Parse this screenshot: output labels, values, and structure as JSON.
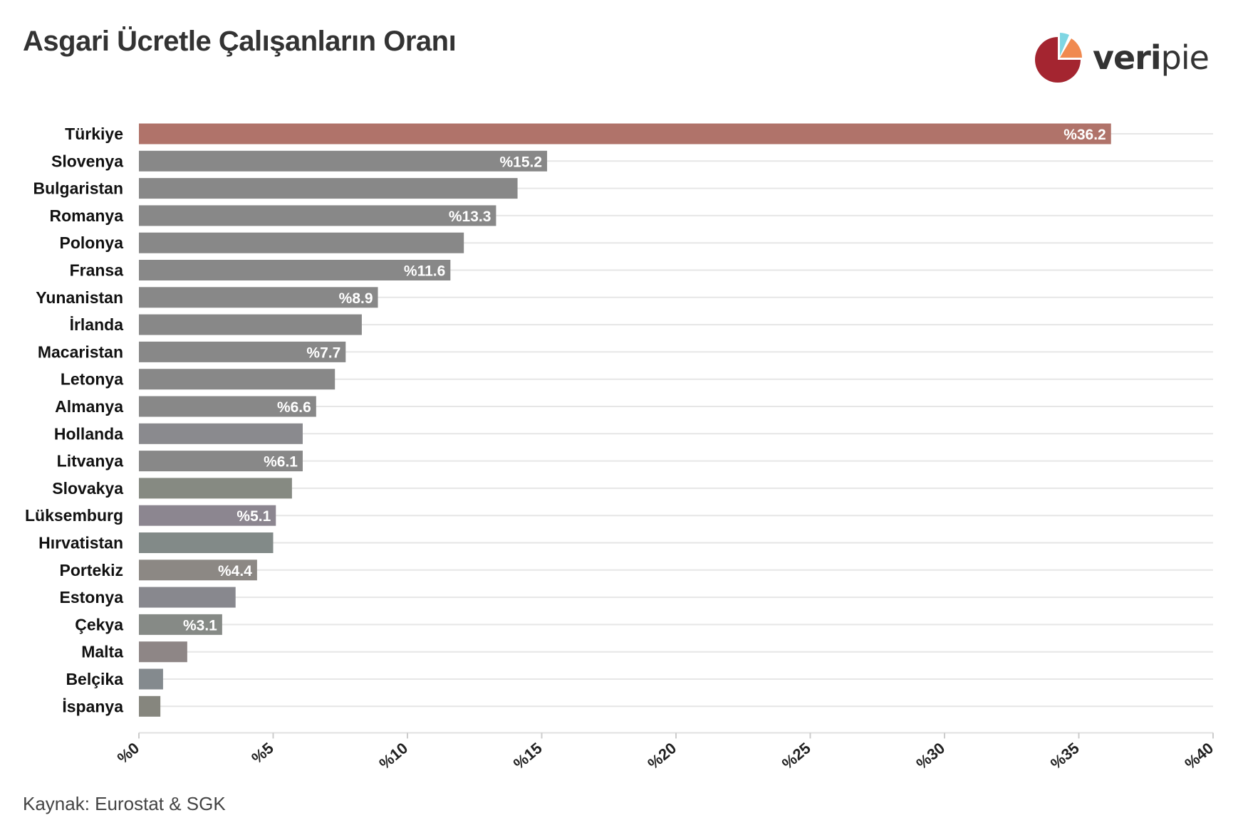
{
  "title": "Asgari Ücretle Çalışanların Oranı",
  "logo": {
    "bold": "veri",
    "light": "pie",
    "icon": "pie-chart-logo-icon"
  },
  "source": "Kaynak: Eurostat & SGK",
  "colors": {
    "highlight": "#b0736a",
    "bar": "#888888",
    "label": "#ffffff",
    "grid": "#e6e6e6"
  },
  "chart_data": {
    "type": "bar",
    "orientation": "horizontal",
    "title": "Asgari Ücretle Çalışanların Oranı",
    "xlabel": "",
    "ylabel": "",
    "xlim": [
      0,
      40
    ],
    "x_ticks": [
      "%0",
      "%5",
      "%10",
      "%15",
      "%20",
      "%25",
      "%30",
      "%35",
      "%40"
    ],
    "grid": true,
    "categories": [
      "Türkiye",
      "Slovenya",
      "Bulgaristan",
      "Romanya",
      "Polonya",
      "Fransa",
      "Yunanistan",
      "İrlanda",
      "Macaristan",
      "Letonya",
      "Almanya",
      "Hollanda",
      "Litvanya",
      "Slovakya",
      "Lüksemburg",
      "Hırvatistan",
      "Portekiz",
      "Estonya",
      "Çekya",
      "Malta",
      "Belçika",
      "İspanya"
    ],
    "values": [
      36.2,
      15.2,
      14.1,
      13.3,
      12.1,
      11.6,
      8.9,
      8.3,
      7.7,
      7.3,
      6.6,
      6.1,
      6.1,
      5.7,
      5.1,
      5.0,
      4.4,
      3.6,
      3.1,
      1.8,
      0.9,
      0.8
    ],
    "data_labels": [
      "%36.2",
      "%15.2",
      "",
      "%13.3",
      "",
      "%11.6",
      "%8.9",
      "",
      "%7.7",
      "",
      "%6.6",
      "",
      "%6.1",
      "",
      "%5.1",
      "",
      "%4.4",
      "",
      "%3.1",
      "",
      "",
      ""
    ],
    "bar_colors": [
      "#b0736a",
      "#888888",
      "#888888",
      "#888888",
      "#888888",
      "#888888",
      "#888888",
      "#888888",
      "#888888",
      "#888888",
      "#888888",
      "#8a8a8e",
      "#888888",
      "#868a82",
      "#8c8690",
      "#828a88",
      "#8c8884",
      "#88888e",
      "#868a86",
      "#8e8686",
      "#848a8e",
      "#86867e"
    ]
  }
}
